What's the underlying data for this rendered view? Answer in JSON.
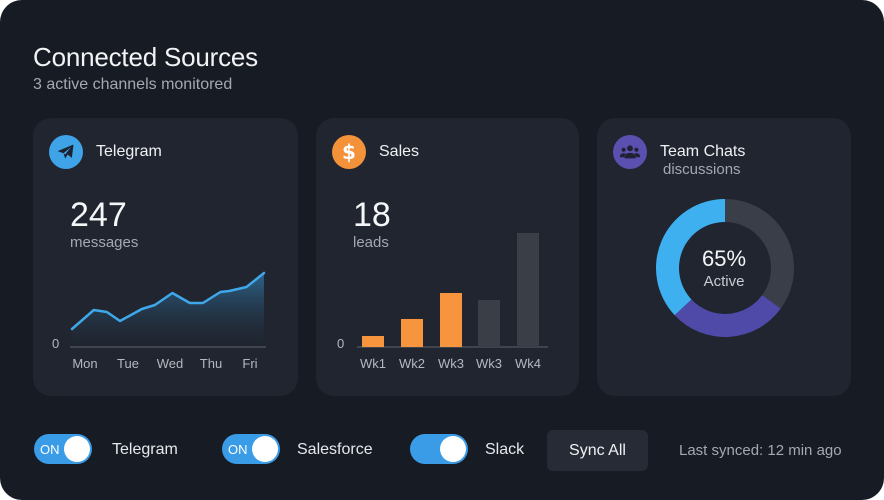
{
  "header": {
    "title": "Connected Sources",
    "subtitle": "3 active channels monitored"
  },
  "cards": {
    "telegram": {
      "name": "Telegram",
      "icon": "paper-plane-icon",
      "icon_color": "#3fa3e8",
      "value": "247",
      "unit": "messages"
    },
    "sales": {
      "name": "Sales",
      "icon": "dollar-icon",
      "icon_color": "#f4923a",
      "value": "18",
      "unit": "leads"
    },
    "team": {
      "name": "Team Chats",
      "subtitle": "discussions",
      "icon": "users-icon",
      "icon_color": "#5b4fb0",
      "center_value": "65%",
      "center_label": "Active"
    }
  },
  "chart_data": [
    {
      "type": "area",
      "title": "Telegram messages",
      "x_tick_labels": [
        "Mon",
        "Tue",
        "Wed",
        "Thu",
        "Fri"
      ],
      "y_tick_labels": [
        "0"
      ],
      "x": [
        0,
        0.5,
        0.8,
        1.1,
        1.6,
        1.9,
        2.3,
        2.7,
        3.0,
        3.4,
        3.6,
        4.0,
        4.4
      ],
      "values": [
        18,
        37,
        35,
        26,
        38,
        42,
        54,
        44,
        44,
        55,
        56,
        60,
        74
      ],
      "ylim": [
        0,
        80
      ],
      "color": "#3fa8ea"
    },
    {
      "type": "bar",
      "title": "Sales leads",
      "categories": [
        "Wk1",
        "Wk2",
        "Wk3",
        "Wk3",
        "Wk4"
      ],
      "y_tick_labels": [
        "0"
      ],
      "values": [
        11,
        28,
        54,
        47,
        114
      ],
      "highlight": [
        true,
        true,
        true,
        false,
        false
      ],
      "colors": {
        "active": "#f7953e",
        "inactive": "#3a3e47"
      },
      "ylim": [
        0,
        120
      ]
    },
    {
      "type": "pie",
      "title": "Team Chats activity",
      "center_text": "65% Active",
      "slices": [
        {
          "name": "segment-blue",
          "value": 37,
          "color": "#3eb0f0"
        },
        {
          "name": "segment-purple",
          "value": 28,
          "color": "#4f4aa8"
        },
        {
          "name": "segment-gray",
          "value": 35,
          "color": "#3a3e48"
        }
      ]
    }
  ],
  "footer": {
    "toggles": [
      {
        "label": "Telegram",
        "state_text": "ON",
        "on": true
      },
      {
        "label": "Salesforce",
        "state_text": "ON",
        "on": true
      },
      {
        "label": "Slack",
        "on": true
      }
    ],
    "sync_button": "Sync All",
    "last_synced": "Last synced: 12 min ago"
  }
}
